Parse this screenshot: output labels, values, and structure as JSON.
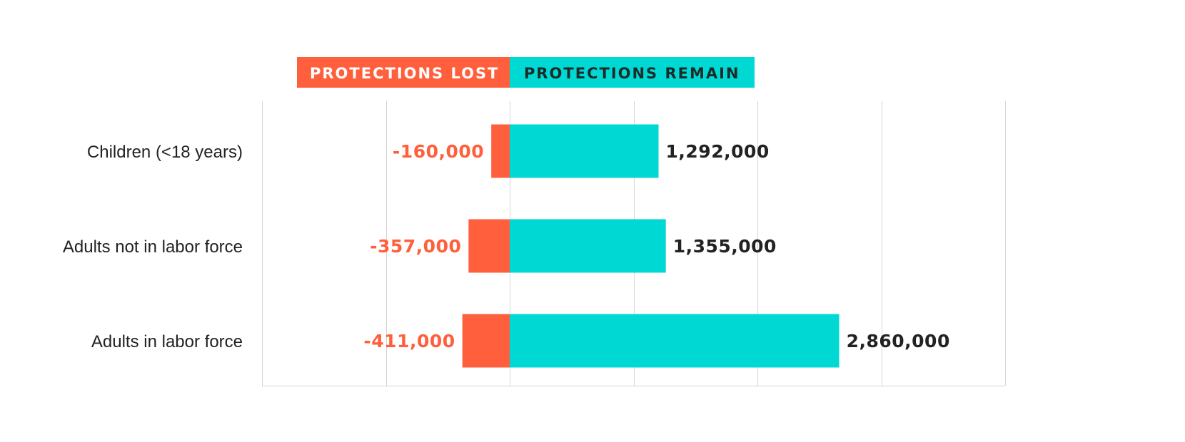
{
  "legend": [
    {
      "label": "PROTECTIONS LOST",
      "color": "#ff5f3c",
      "text_color": "#ffffff"
    },
    {
      "label": "PROTECTIONS REMAIN",
      "color": "#00d9d3",
      "text_color": "#1d2b2b"
    }
  ],
  "chart_data": {
    "type": "bar",
    "orientation": "horizontal",
    "stacked": "diverging",
    "categories": [
      "Children (<18 years)",
      "Adults not in labor force",
      "Adults in labor force"
    ],
    "series": [
      {
        "name": "PROTECTIONS LOST",
        "values": [
          -160000,
          -357000,
          -411000
        ],
        "labels": [
          "-160,000",
          "-357,000",
          "-411,000"
        ],
        "color": "#ff5f3c"
      },
      {
        "name": "PROTECTIONS REMAIN",
        "values": [
          1292000,
          1355000,
          2860000
        ],
        "labels": [
          "1,292,000",
          "1,355,000",
          "2,860,000"
        ],
        "color": "#00d9d3"
      }
    ],
    "xlim": [
      -2150000,
      4300000
    ],
    "grid_step": 1075000,
    "grid": true,
    "legend_position": "top",
    "title": "",
    "xlabel": "",
    "ylabel": ""
  }
}
